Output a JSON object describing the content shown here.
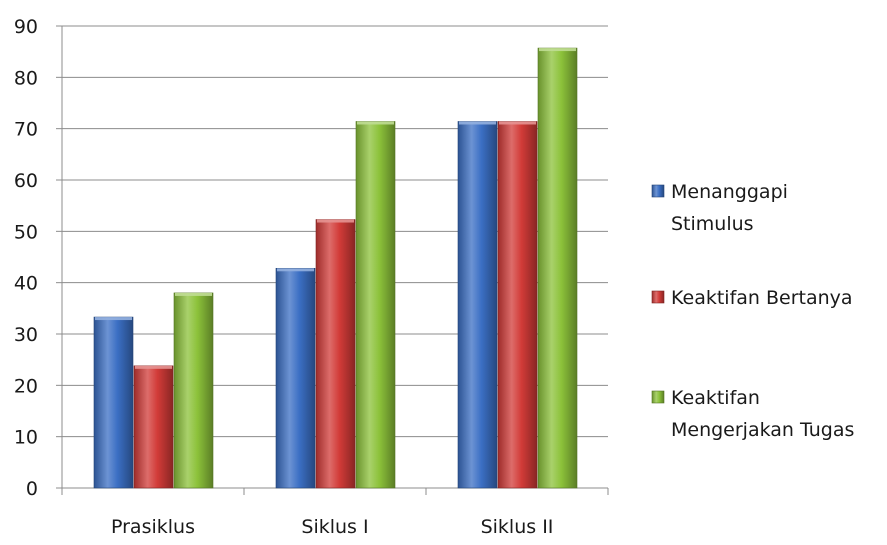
{
  "chart_data": {
    "type": "bar",
    "title": "",
    "xlabel": "",
    "ylabel": "",
    "categories": [
      "Prasiklus",
      "Siklus I",
      "Siklus II"
    ],
    "series": [
      {
        "name": "Menanggapi Stimulus",
        "legend_lines": [
          "Menanggapi",
          "Stimulus"
        ],
        "values": [
          33.3,
          42.8,
          71.4
        ],
        "color": "#3b6fc4"
      },
      {
        "name": "Keaktifan Bertanya",
        "legend_lines": [
          "Keaktifan Bertanya"
        ],
        "values": [
          23.8,
          52.3,
          71.4
        ],
        "color": "#d23b38"
      },
      {
        "name": "Keaktifan Mengerjakan Tugas",
        "legend_lines": [
          "Keaktifan",
          "Mengerjakan Tugas"
        ],
        "values": [
          38.0,
          71.4,
          85.7
        ],
        "color": "#8cc23a"
      }
    ],
    "ylim": [
      0,
      90
    ],
    "yticks": [
      0,
      10,
      20,
      30,
      40,
      50,
      60,
      70,
      80,
      90
    ],
    "grid": true,
    "legend_position": "right"
  }
}
